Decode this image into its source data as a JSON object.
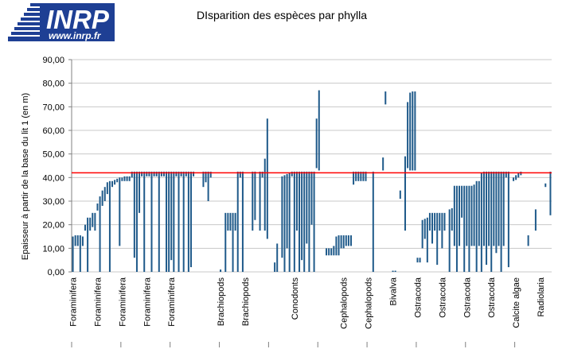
{
  "logo": {
    "name": "INRP",
    "website": "www.inrp.fr",
    "color": "#1e3f94"
  },
  "chart_data": {
    "type": "bar",
    "title": "DIsparition des espèces par phylla",
    "xlabel": "",
    "ylabel": "Epaisseur à partir de la base du lit 1 (en m)",
    "ylim": [
      0,
      90
    ],
    "ytick_step": 10,
    "yticks": [
      "0,00",
      "10,00",
      "20,00",
      "30,00",
      "40,00",
      "50,00",
      "60,00",
      "70,00",
      "80,00",
      "90,00"
    ],
    "grid": true,
    "bar_color": "#1f5a8a",
    "category_count": 195,
    "category_labels": [
      {
        "index": 0,
        "label": "Foraminifera"
      },
      {
        "index": 10,
        "label": "Foraminifera"
      },
      {
        "index": 20,
        "label": "Foraminifera"
      },
      {
        "index": 30,
        "label": "Foraminifera"
      },
      {
        "index": 40,
        "label": "Foraminifera"
      },
      {
        "index": 60,
        "label": "Brachiopods"
      },
      {
        "index": 70,
        "label": "Brachiopods"
      },
      {
        "index": 90,
        "label": "Conodonts"
      },
      {
        "index": 110,
        "label": "Cephalopods"
      },
      {
        "index": 120,
        "label": "Cephalopods"
      },
      {
        "index": 130,
        "label": "Bivalva"
      },
      {
        "index": 140,
        "label": "Ostracoda"
      },
      {
        "index": 150,
        "label": "Ostracoda"
      },
      {
        "index": 160,
        "label": "Ostracoda"
      },
      {
        "index": 170,
        "label": "Ostracoda"
      },
      {
        "index": 180,
        "label": "Calcite algae"
      },
      {
        "index": 190,
        "label": "Radiolaria"
      }
    ],
    "reference_line": {
      "value": 42,
      "color": "#ff0000"
    },
    "ranges": [
      [
        0,
        15
      ],
      [
        11,
        15.5
      ],
      [
        11,
        15.5
      ],
      [
        0,
        15.5
      ],
      [
        11,
        15
      ],
      [
        17.5,
        20
      ],
      [
        0,
        23
      ],
      [
        17.5,
        23
      ],
      [
        19,
        25
      ],
      [
        17.5,
        25
      ],
      [
        26,
        29
      ],
      [
        0,
        32
      ],
      [
        28,
        34.5
      ],
      [
        30,
        36
      ],
      [
        33,
        38
      ],
      [
        0,
        38.5
      ],
      [
        36,
        38.5
      ],
      [
        37,
        39
      ],
      [
        38,
        39.5
      ],
      [
        11,
        40
      ],
      [
        38.5,
        40
      ],
      [
        38.5,
        40.5
      ],
      [
        38.5,
        40.5
      ],
      [
        38.5,
        40.5
      ],
      [
        40,
        42.5
      ],
      [
        6,
        42.5
      ],
      [
        0,
        42.5
      ],
      [
        25,
        42.5
      ],
      [
        40.5,
        42.5
      ],
      [
        0,
        42.5
      ],
      [
        40.5,
        42.5
      ],
      [
        40.5,
        42.5
      ],
      [
        0,
        42.5
      ],
      [
        40.5,
        42.5
      ],
      [
        40.5,
        42.5
      ],
      [
        0,
        42.5
      ],
      [
        40.5,
        42.5
      ],
      [
        40.5,
        42.5
      ],
      [
        0,
        42.5
      ],
      [
        0,
        42.5
      ],
      [
        5,
        42.5
      ],
      [
        0,
        42.5
      ],
      [
        40.5,
        42.5
      ],
      [
        0,
        42.5
      ],
      [
        40.5,
        42.5
      ],
      [
        0,
        42.5
      ],
      [
        40.5,
        42.5
      ],
      [
        0,
        42.5
      ],
      [
        2,
        42.5
      ],
      [
        40.5,
        42.5
      ],
      null,
      null,
      null,
      [
        36,
        42.5
      ],
      [
        38,
        42.5
      ],
      [
        30,
        42.5
      ],
      [
        40,
        42.5
      ],
      null,
      null,
      null,
      [
        0,
        1
      ],
      null,
      [
        0,
        25
      ],
      [
        17.5,
        25
      ],
      [
        17.5,
        25
      ],
      [
        0,
        25
      ],
      [
        17.5,
        25
      ],
      [
        0,
        42.5
      ],
      [
        40,
        42.5
      ],
      [
        0,
        42.5
      ],
      null,
      null,
      null,
      [
        17.5,
        42.5
      ],
      [
        22,
        42.5
      ],
      null,
      [
        17.5,
        42.5
      ],
      [
        40,
        42.5
      ],
      [
        17.5,
        48
      ],
      [
        14,
        65
      ],
      null,
      null,
      [
        0,
        4
      ],
      [
        0,
        12
      ],
      null,
      [
        6,
        40.5
      ],
      [
        0,
        41
      ],
      [
        10,
        41.5
      ],
      [
        0,
        42
      ],
      [
        40.5,
        42.5
      ],
      [
        0,
        42.5
      ],
      [
        17.5,
        42.5
      ],
      [
        0,
        42.5
      ],
      [
        5,
        42.5
      ],
      [
        0,
        42.5
      ],
      [
        12,
        42.5
      ],
      [
        0,
        42.5
      ],
      [
        20,
        42.5
      ],
      [
        0,
        42.5
      ],
      [
        44,
        65
      ],
      [
        43,
        77
      ],
      null,
      null,
      [
        7,
        10
      ],
      [
        7,
        10
      ],
      [
        7,
        10
      ],
      [
        7,
        11
      ],
      [
        7,
        15
      ],
      [
        7,
        15.5
      ],
      [
        10,
        15.5
      ],
      [
        10,
        15.5
      ],
      [
        11,
        15.5
      ],
      [
        11,
        15.5
      ],
      [
        11,
        15.5
      ],
      [
        37,
        42.5
      ],
      [
        38.5,
        42.5
      ],
      [
        38.5,
        42.5
      ],
      [
        38.5,
        42.5
      ],
      [
        38.5,
        42.5
      ],
      [
        38.5,
        42.5
      ],
      null,
      null,
      [
        0,
        42.5
      ],
      null,
      null,
      null,
      [
        43,
        48.5
      ],
      [
        71,
        76.5
      ],
      null,
      null,
      [
        0,
        0.5
      ],
      [
        0,
        0.5
      ],
      null,
      [
        31,
        34.5
      ],
      null,
      [
        17.5,
        49
      ],
      [
        44,
        72
      ],
      [
        43,
        76
      ],
      [
        43,
        76.5
      ],
      [
        43,
        76.5
      ],
      [
        4,
        6
      ],
      [
        4,
        6
      ],
      [
        10,
        22
      ],
      [
        14,
        22.5
      ],
      [
        4,
        23
      ],
      [
        17.5,
        25
      ],
      [
        12,
        25
      ],
      [
        17.5,
        25
      ],
      [
        3,
        25
      ],
      [
        17.5,
        25
      ],
      [
        10,
        25
      ],
      [
        17.5,
        25
      ],
      null,
      [
        0,
        26.5
      ],
      [
        17.5,
        27
      ],
      [
        11,
        36.5
      ],
      [
        0,
        36.5
      ],
      [
        11,
        36.5
      ],
      [
        23,
        36.5
      ],
      [
        0,
        36.5
      ],
      [
        11,
        36.5
      ],
      [
        0,
        36.5
      ],
      [
        11,
        36.5
      ],
      [
        11,
        37
      ],
      [
        0,
        38.5
      ],
      [
        11,
        38.5
      ],
      [
        0,
        42
      ],
      [
        11,
        42.5
      ],
      [
        3,
        42.5
      ],
      [
        11,
        42.5
      ],
      [
        0,
        42.5
      ],
      [
        11,
        42.5
      ],
      [
        8,
        42.5
      ],
      [
        11,
        42.5
      ],
      [
        0,
        42.5
      ],
      [
        11,
        42.5
      ],
      [
        40,
        42.5
      ],
      [
        2,
        42.5
      ],
      null,
      [
        38.5,
        40
      ],
      [
        39,
        41
      ],
      [
        40,
        42
      ],
      [
        41,
        42.5
      ],
      null,
      null,
      [
        11,
        15.5
      ],
      null,
      null,
      [
        17.5,
        26.5
      ],
      null,
      null,
      null,
      [
        36,
        37.5
      ],
      null,
      [
        24,
        42.5
      ]
    ]
  }
}
